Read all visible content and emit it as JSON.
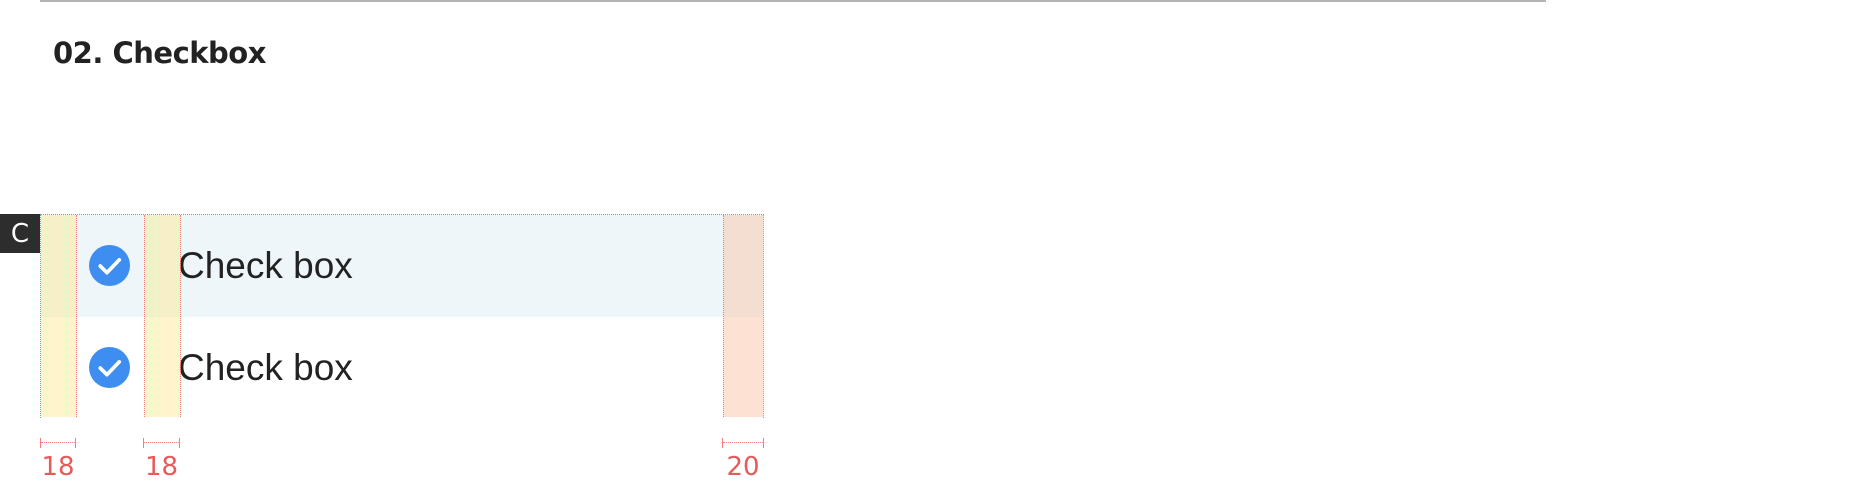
{
  "section": {
    "title": "02. Checkbox"
  },
  "marker": {
    "label": "C"
  },
  "checkbox_list": {
    "items": [
      {
        "label": "Check box",
        "checked": true,
        "icon": "check-circle-icon"
      },
      {
        "label": "Check box",
        "checked": true,
        "icon": "check-circle-icon"
      }
    ]
  },
  "measurements": {
    "left_padding": "18",
    "icon_gap": "18",
    "right_padding": "20"
  },
  "colors": {
    "accent": "#3d8ef0",
    "row_highlight": "#eef6fa",
    "guide_text": "#e85a5a"
  }
}
